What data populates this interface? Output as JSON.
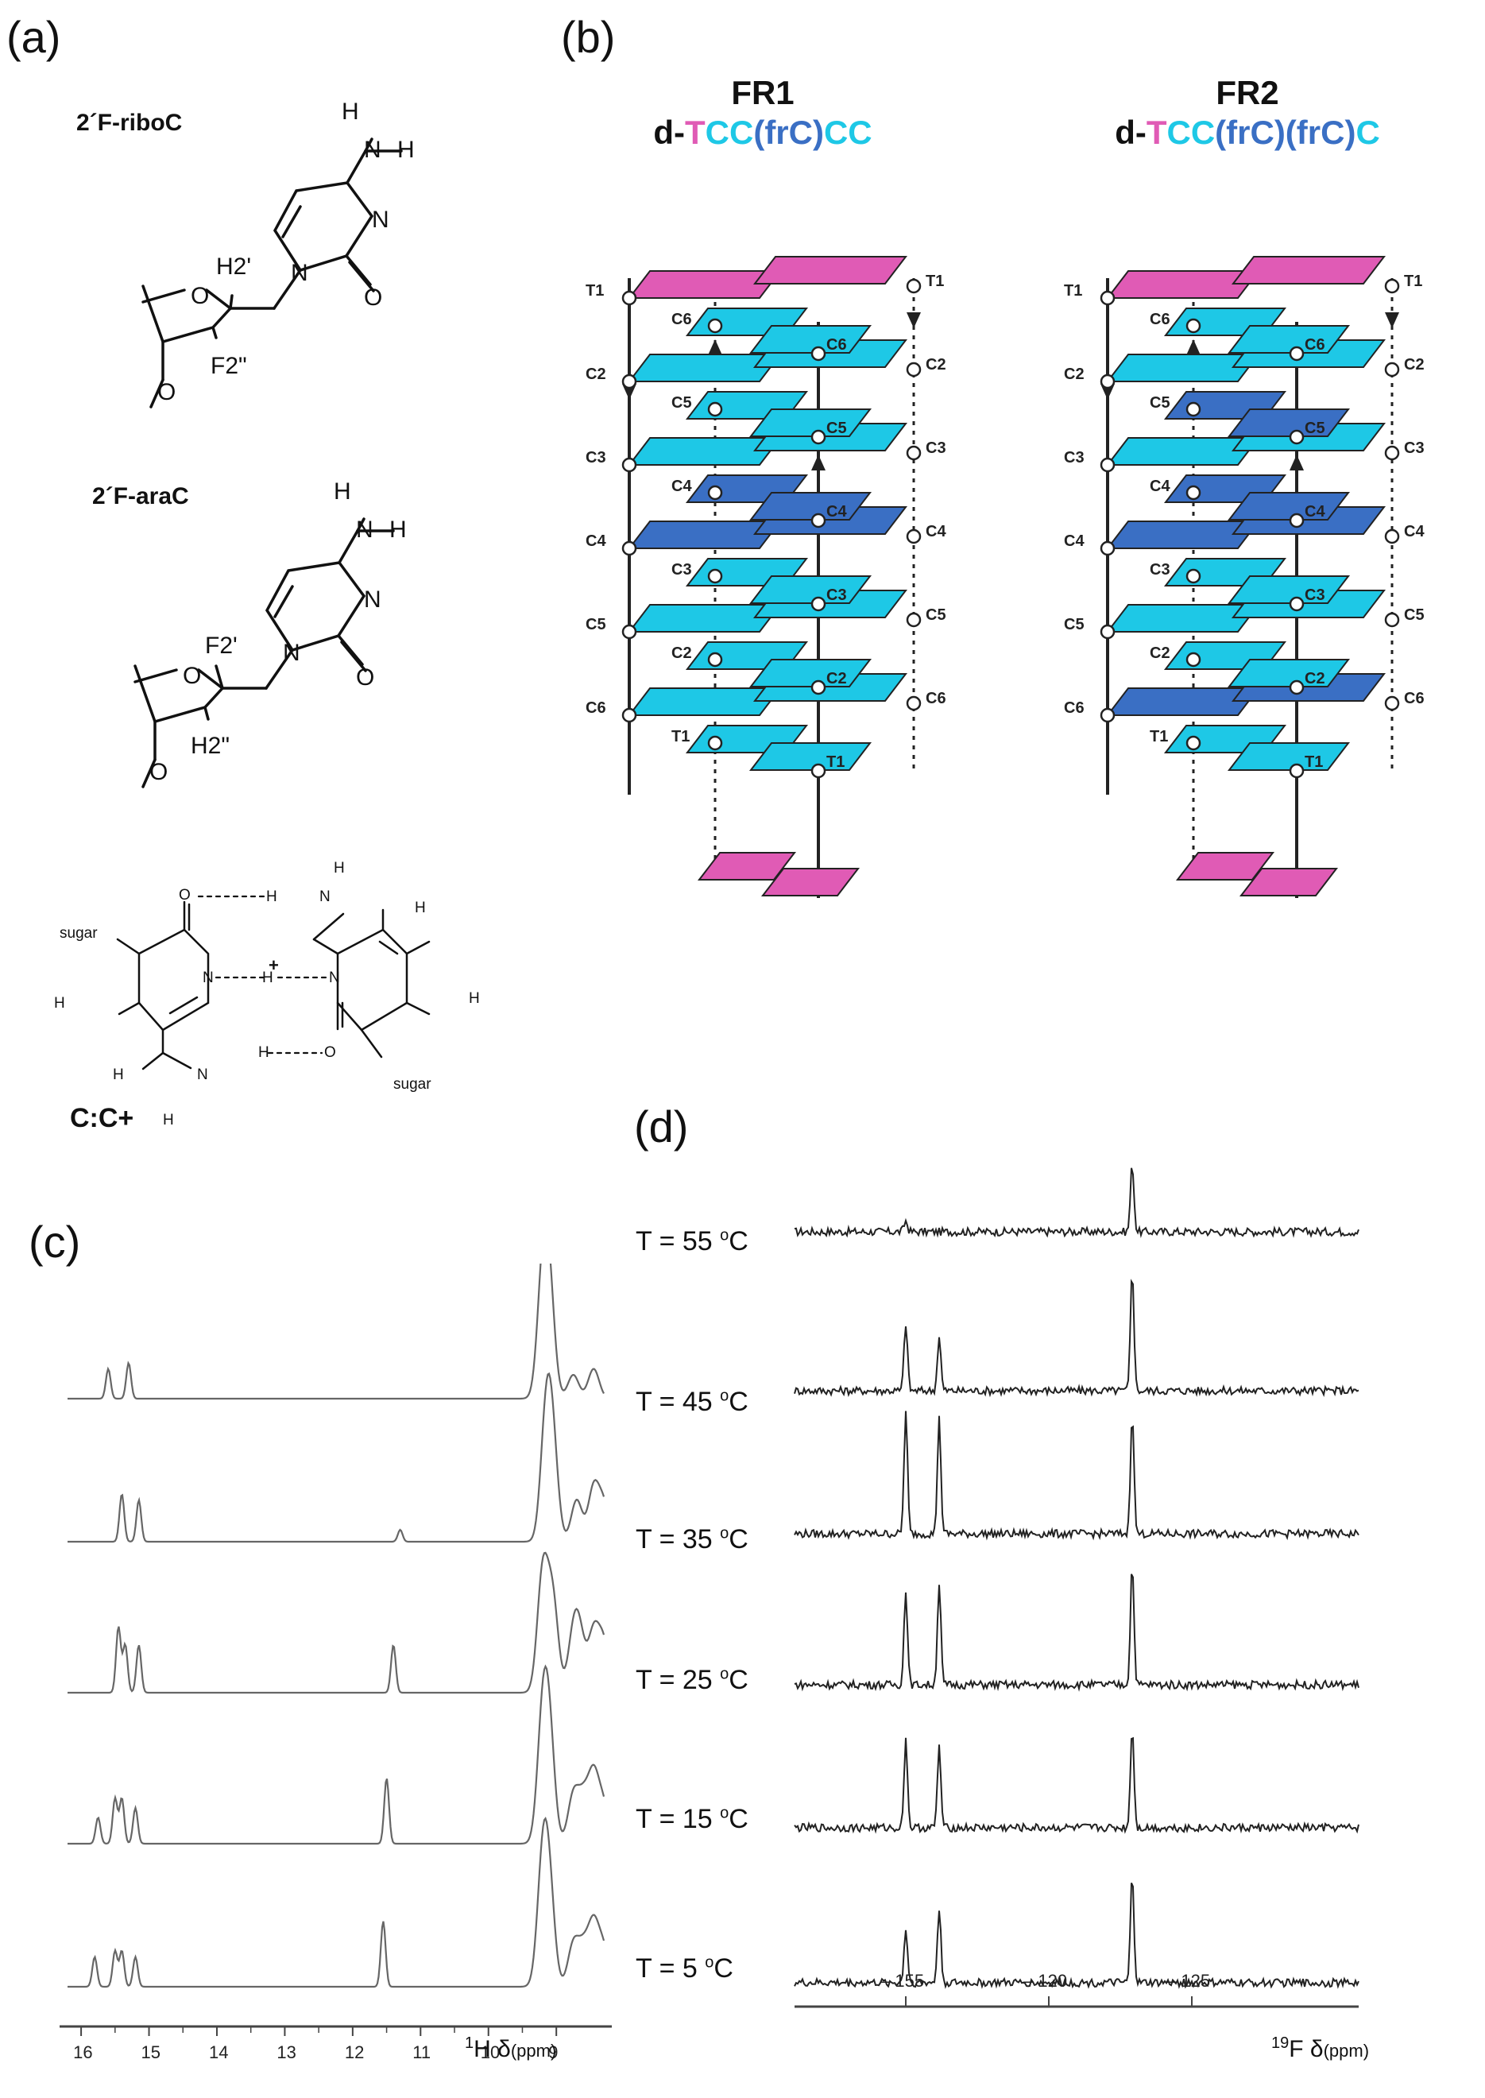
{
  "panels": {
    "a": "(a)",
    "b": "(b)",
    "c": "(c)",
    "d": "(d)"
  },
  "panel_a": {
    "mol1": {
      "name": "2´F-riboC",
      "labels": [
        "H",
        "N",
        "H",
        "N",
        "N",
        "O",
        "O",
        "H2'",
        "F2\"",
        "O"
      ]
    },
    "mol2": {
      "name": "2´F-araC",
      "labels": [
        "H",
        "N",
        "H",
        "N",
        "N",
        "O",
        "O",
        "F2'",
        "H2\"",
        "O"
      ]
    },
    "pair": {
      "name": "C:C+",
      "plus": "+",
      "sugar": "sugar",
      "H": "H",
      "N": "N",
      "O": "O"
    }
  },
  "panel_b": {
    "fr1": {
      "title": "FR1",
      "seq_parts": [
        {
          "text": "d-",
          "color": "#111111"
        },
        {
          "text": "T",
          "color": "#e05bb5"
        },
        {
          "text": "CC",
          "color": "#1ec8e6"
        },
        {
          "text": "(frC)",
          "color": "#3a6fc4"
        },
        {
          "text": "CC",
          "color": "#1ec8e6"
        }
      ]
    },
    "fr2": {
      "title": "FR2",
      "seq_parts": [
        {
          "text": "d-",
          "color": "#111111"
        },
        {
          "text": "T",
          "color": "#e05bb5"
        },
        {
          "text": "CC",
          "color": "#1ec8e6"
        },
        {
          "text": "(frC)(frC)",
          "color": "#3a6fc4"
        },
        {
          "text": "C",
          "color": "#1ec8e6"
        }
      ]
    },
    "colors": {
      "thymine": "#e05bb5",
      "cytosine": "#1ec8e6",
      "fluoro": "#3a6fc4"
    },
    "strand_labels": {
      "left": [
        "T1",
        "C2",
        "C3",
        "C4",
        "C5",
        "C6"
      ],
      "right_outer": [
        "T1",
        "C2",
        "C3",
        "C4",
        "C5",
        "C6"
      ],
      "inner_dotted": [
        "C6",
        "C5",
        "C4",
        "C3",
        "C2",
        "T1"
      ],
      "inner_solid": [
        "C6",
        "C5",
        "C4",
        "C3",
        "C2",
        "T1"
      ]
    }
  },
  "panel_c": {
    "axis_label_main": "H δ",
    "axis_label_sup": "1",
    "axis_label_sub": "(ppm)",
    "ticks": [
      "16",
      "15",
      "14",
      "13",
      "12",
      "11",
      "10",
      "9"
    ]
  },
  "panel_d": {
    "temperatures": [
      "T = 55 ",
      "T = 45 ",
      "T = 35 ",
      "T = 25 ",
      "T = 15 ",
      "T = 5 "
    ],
    "deg": "o",
    "unit": "C",
    "axis_label_main": "F δ",
    "axis_label_sup": "19",
    "axis_label_sub": "(ppm)",
    "ticks": [
      "– 155",
      "– 120",
      "– 125"
    ]
  }
}
